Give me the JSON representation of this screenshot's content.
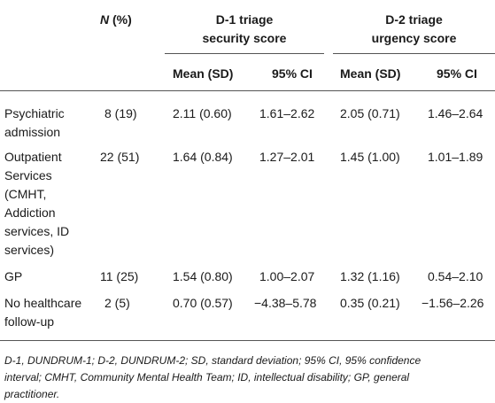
{
  "table": {
    "header": {
      "n_label_italic": "N",
      "n_label_rest": " (%)",
      "group1_line1": "D-1 triage",
      "group1_line2": "security score",
      "group2_line1": "D-2 triage",
      "group2_line2": "urgency score",
      "mean_sd": "Mean (SD)",
      "ci": "95% CI"
    },
    "rows": [
      {
        "label": [
          "Psychiatric",
          "admission"
        ],
        "n": "8 (19)",
        "d1_mean": "2.11 (0.60)",
        "d1_ci": "1.61–2.62",
        "d2_mean": "2.05 (0.71)",
        "d2_ci": "1.46–2.64"
      },
      {
        "label": [
          "Outpatient",
          "Services",
          "(CMHT,",
          "Addiction",
          "services, ID",
          "services)"
        ],
        "n": "22 (51)",
        "d1_mean": "1.64 (0.84)",
        "d1_ci": "1.27–2.01",
        "d2_mean": "1.45 (1.00)",
        "d2_ci": "1.01–1.89"
      },
      {
        "label": [
          "GP"
        ],
        "n": "11 (25)",
        "d1_mean": "1.54 (0.80)",
        "d1_ci": "1.00–2.07",
        "d2_mean": "1.32 (1.16)",
        "d2_ci": "0.54–2.10"
      },
      {
        "label": [
          "No healthcare",
          "follow-up"
        ],
        "n": "2 (5)",
        "d1_mean": "0.70 (0.57)",
        "d1_ci": "−4.38–5.78",
        "d2_mean": "0.35 (0.21)",
        "d2_ci": "−1.56–2.26"
      }
    ]
  },
  "footnote": {
    "line1": "D-1, DUNDRUM-1; D-2, DUNDRUM-2; SD, standard deviation; 95% CI, 95% confidence",
    "line2": "interval; CMHT, Community Mental Health Team; ID, intellectual disability; GP, general",
    "line3": "practitioner."
  }
}
